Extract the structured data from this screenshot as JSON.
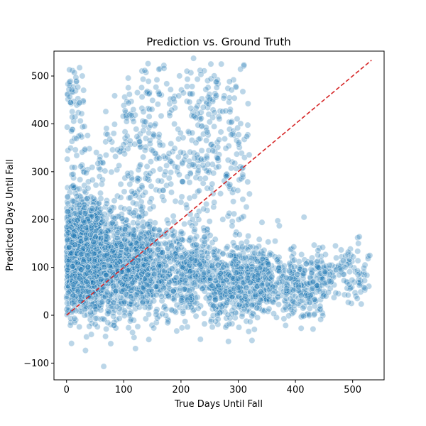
{
  "chart_data": {
    "type": "scatter",
    "title": "Prediction vs. Ground Truth",
    "xlabel": "True Days Until Fall",
    "ylabel": "Predicted Days Until Fall",
    "xlim": [
      -22,
      555
    ],
    "ylim": [
      -135,
      552
    ],
    "xticks": [
      0,
      100,
      200,
      300,
      400,
      500
    ],
    "yticks": [
      -100,
      0,
      100,
      200,
      300,
      400,
      500
    ],
    "xtick_labels": [
      "0",
      "100",
      "200",
      "300",
      "400",
      "500"
    ],
    "ytick_labels": [
      "−100",
      "0",
      "100",
      "200",
      "300",
      "400",
      "500"
    ],
    "grid": false,
    "point_color": "#1f77b4",
    "point_edge_color": "#ffffff",
    "point_alpha": 0.3,
    "reference_line": {
      "x": [
        0,
        533
      ],
      "y": [
        0,
        533
      ],
      "color": "#d62728",
      "style": "dashed"
    },
    "clusters": [
      {
        "x_range": [
          0,
          60
        ],
        "y_mean": 120,
        "y_sd": 55,
        "count": 1500
      },
      {
        "x_range": [
          60,
          150
        ],
        "y_mean": 110,
        "y_sd": 55,
        "count": 900
      },
      {
        "x_range": [
          150,
          250
        ],
        "y_mean": 95,
        "y_sd": 50,
        "count": 500
      },
      {
        "x_range": [
          250,
          350
        ],
        "y_mean": 75,
        "y_sd": 42,
        "count": 550
      },
      {
        "x_range": [
          350,
          450
        ],
        "y_mean": 65,
        "y_sd": 35,
        "count": 330
      },
      {
        "x_range": [
          450,
          530
        ],
        "y_mean": 85,
        "y_sd": 28,
        "count": 110
      },
      {
        "x_range": [
          0,
          30
        ],
        "y_mean": 460,
        "y_sd": 30,
        "count": 40
      },
      {
        "x_range": [
          100,
          320
        ],
        "y_mean": 440,
        "y_sd": 50,
        "count": 180
      },
      {
        "x_range": [
          0,
          320
        ],
        "y_mean": 310,
        "y_sd": 60,
        "count": 350
      }
    ],
    "outliers": [
      {
        "x": 65,
        "y": -107
      },
      {
        "x": 310,
        "y": 523
      },
      {
        "x": 222,
        "y": 537
      },
      {
        "x": 5,
        "y": 513
      },
      {
        "x": 530,
        "y": 125
      },
      {
        "x": 510,
        "y": 150
      },
      {
        "x": 470,
        "y": 145
      },
      {
        "x": 415,
        "y": 205
      }
    ]
  }
}
